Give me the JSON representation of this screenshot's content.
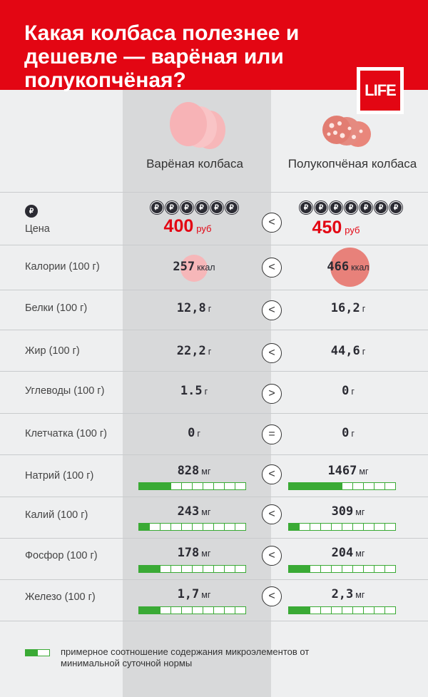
{
  "title": "Какая колбаса полезнее и дешевле — варёная или полукопчёная?",
  "logo": "LIFE",
  "columns": {
    "left": "Варёная колбаса",
    "right": "Полукопчёная колбаса"
  },
  "colors": {
    "brand_red": "#e30613",
    "bar_green": "#3aaa35",
    "dark": "#2b2b33"
  },
  "price_row": {
    "icon": "ruble-icon",
    "label": "Цена",
    "coin_symbol": "₽",
    "left_coins": 6,
    "right_coins": 7,
    "left_value": "400",
    "right_value": "450",
    "unit": "руб",
    "compare": "<"
  },
  "rows": [
    {
      "label": "Калории (100 г)",
      "left": "257",
      "right": "466",
      "unit": "ккал",
      "compare": "<"
    },
    {
      "label": "Белки (100 г)",
      "left": "12,8",
      "right": "16,2",
      "unit": "г",
      "compare": "<"
    },
    {
      "label": "Жир (100 г)",
      "left": "22,2",
      "right": "44,6",
      "unit": "г",
      "compare": "<"
    },
    {
      "label": "Углеводы (100 г)",
      "left": "1.5",
      "right": "0",
      "unit": "г",
      "compare": ">"
    },
    {
      "label": "Клетчатка (100 г)",
      "left": "0",
      "right": "0",
      "unit": "г",
      "compare": "="
    },
    {
      "label": "Натрий (100 г)",
      "left": "828",
      "right": "1467",
      "unit": "мг",
      "compare": "<",
      "left_bar": 3,
      "right_bar": 5
    },
    {
      "label": "Калий (100 г)",
      "left": "243",
      "right": "309",
      "unit": "мг",
      "compare": "<",
      "left_bar": 1,
      "right_bar": 1
    },
    {
      "label": "Фосфор (100 г)",
      "left": "178",
      "right": "204",
      "unit": "мг",
      "compare": "<",
      "left_bar": 2,
      "right_bar": 2
    },
    {
      "label": "Железо (100 г)",
      "left": "1,7",
      "right": "2,3",
      "unit": "мг",
      "compare": "<",
      "left_bar": 2,
      "right_bar": 2
    }
  ],
  "bar_segments_total": 10,
  "legend": "примерное соотношение содержания микроэлементов от минимальной суточной нормы"
}
